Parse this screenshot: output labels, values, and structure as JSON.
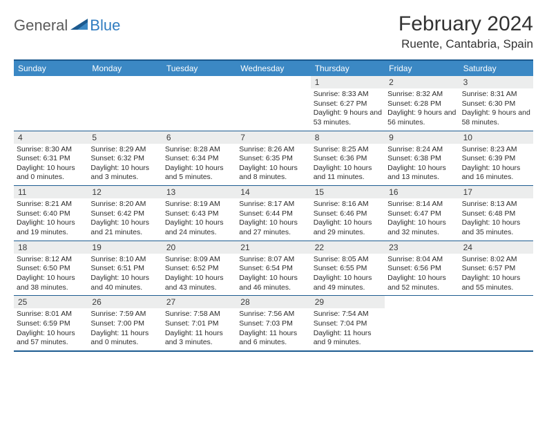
{
  "brand": {
    "general": "General",
    "blue": "Blue"
  },
  "title": "February 2024",
  "location": "Ruente, Cantabria, Spain",
  "header_bg": "#3b88c4",
  "rule_color": "#1b5a8f",
  "band_bg": "#eceded",
  "weekdays": [
    "Sunday",
    "Monday",
    "Tuesday",
    "Wednesday",
    "Thursday",
    "Friday",
    "Saturday"
  ],
  "weeks": [
    [
      {
        "n": "",
        "sunrise": "",
        "sunset": "",
        "daylight": ""
      },
      {
        "n": "",
        "sunrise": "",
        "sunset": "",
        "daylight": ""
      },
      {
        "n": "",
        "sunrise": "",
        "sunset": "",
        "daylight": ""
      },
      {
        "n": "",
        "sunrise": "",
        "sunset": "",
        "daylight": ""
      },
      {
        "n": "1",
        "sunrise": "Sunrise: 8:33 AM",
        "sunset": "Sunset: 6:27 PM",
        "daylight": "Daylight: 9 hours and 53 minutes."
      },
      {
        "n": "2",
        "sunrise": "Sunrise: 8:32 AM",
        "sunset": "Sunset: 6:28 PM",
        "daylight": "Daylight: 9 hours and 56 minutes."
      },
      {
        "n": "3",
        "sunrise": "Sunrise: 8:31 AM",
        "sunset": "Sunset: 6:30 PM",
        "daylight": "Daylight: 9 hours and 58 minutes."
      }
    ],
    [
      {
        "n": "4",
        "sunrise": "Sunrise: 8:30 AM",
        "sunset": "Sunset: 6:31 PM",
        "daylight": "Daylight: 10 hours and 0 minutes."
      },
      {
        "n": "5",
        "sunrise": "Sunrise: 8:29 AM",
        "sunset": "Sunset: 6:32 PM",
        "daylight": "Daylight: 10 hours and 3 minutes."
      },
      {
        "n": "6",
        "sunrise": "Sunrise: 8:28 AM",
        "sunset": "Sunset: 6:34 PM",
        "daylight": "Daylight: 10 hours and 5 minutes."
      },
      {
        "n": "7",
        "sunrise": "Sunrise: 8:26 AM",
        "sunset": "Sunset: 6:35 PM",
        "daylight": "Daylight: 10 hours and 8 minutes."
      },
      {
        "n": "8",
        "sunrise": "Sunrise: 8:25 AM",
        "sunset": "Sunset: 6:36 PM",
        "daylight": "Daylight: 10 hours and 11 minutes."
      },
      {
        "n": "9",
        "sunrise": "Sunrise: 8:24 AM",
        "sunset": "Sunset: 6:38 PM",
        "daylight": "Daylight: 10 hours and 13 minutes."
      },
      {
        "n": "10",
        "sunrise": "Sunrise: 8:23 AM",
        "sunset": "Sunset: 6:39 PM",
        "daylight": "Daylight: 10 hours and 16 minutes."
      }
    ],
    [
      {
        "n": "11",
        "sunrise": "Sunrise: 8:21 AM",
        "sunset": "Sunset: 6:40 PM",
        "daylight": "Daylight: 10 hours and 19 minutes."
      },
      {
        "n": "12",
        "sunrise": "Sunrise: 8:20 AM",
        "sunset": "Sunset: 6:42 PM",
        "daylight": "Daylight: 10 hours and 21 minutes."
      },
      {
        "n": "13",
        "sunrise": "Sunrise: 8:19 AM",
        "sunset": "Sunset: 6:43 PM",
        "daylight": "Daylight: 10 hours and 24 minutes."
      },
      {
        "n": "14",
        "sunrise": "Sunrise: 8:17 AM",
        "sunset": "Sunset: 6:44 PM",
        "daylight": "Daylight: 10 hours and 27 minutes."
      },
      {
        "n": "15",
        "sunrise": "Sunrise: 8:16 AM",
        "sunset": "Sunset: 6:46 PM",
        "daylight": "Daylight: 10 hours and 29 minutes."
      },
      {
        "n": "16",
        "sunrise": "Sunrise: 8:14 AM",
        "sunset": "Sunset: 6:47 PM",
        "daylight": "Daylight: 10 hours and 32 minutes."
      },
      {
        "n": "17",
        "sunrise": "Sunrise: 8:13 AM",
        "sunset": "Sunset: 6:48 PM",
        "daylight": "Daylight: 10 hours and 35 minutes."
      }
    ],
    [
      {
        "n": "18",
        "sunrise": "Sunrise: 8:12 AM",
        "sunset": "Sunset: 6:50 PM",
        "daylight": "Daylight: 10 hours and 38 minutes."
      },
      {
        "n": "19",
        "sunrise": "Sunrise: 8:10 AM",
        "sunset": "Sunset: 6:51 PM",
        "daylight": "Daylight: 10 hours and 40 minutes."
      },
      {
        "n": "20",
        "sunrise": "Sunrise: 8:09 AM",
        "sunset": "Sunset: 6:52 PM",
        "daylight": "Daylight: 10 hours and 43 minutes."
      },
      {
        "n": "21",
        "sunrise": "Sunrise: 8:07 AM",
        "sunset": "Sunset: 6:54 PM",
        "daylight": "Daylight: 10 hours and 46 minutes."
      },
      {
        "n": "22",
        "sunrise": "Sunrise: 8:05 AM",
        "sunset": "Sunset: 6:55 PM",
        "daylight": "Daylight: 10 hours and 49 minutes."
      },
      {
        "n": "23",
        "sunrise": "Sunrise: 8:04 AM",
        "sunset": "Sunset: 6:56 PM",
        "daylight": "Daylight: 10 hours and 52 minutes."
      },
      {
        "n": "24",
        "sunrise": "Sunrise: 8:02 AM",
        "sunset": "Sunset: 6:57 PM",
        "daylight": "Daylight: 10 hours and 55 minutes."
      }
    ],
    [
      {
        "n": "25",
        "sunrise": "Sunrise: 8:01 AM",
        "sunset": "Sunset: 6:59 PM",
        "daylight": "Daylight: 10 hours and 57 minutes."
      },
      {
        "n": "26",
        "sunrise": "Sunrise: 7:59 AM",
        "sunset": "Sunset: 7:00 PM",
        "daylight": "Daylight: 11 hours and 0 minutes."
      },
      {
        "n": "27",
        "sunrise": "Sunrise: 7:58 AM",
        "sunset": "Sunset: 7:01 PM",
        "daylight": "Daylight: 11 hours and 3 minutes."
      },
      {
        "n": "28",
        "sunrise": "Sunrise: 7:56 AM",
        "sunset": "Sunset: 7:03 PM",
        "daylight": "Daylight: 11 hours and 6 minutes."
      },
      {
        "n": "29",
        "sunrise": "Sunrise: 7:54 AM",
        "sunset": "Sunset: 7:04 PM",
        "daylight": "Daylight: 11 hours and 9 minutes."
      },
      {
        "n": "",
        "sunrise": "",
        "sunset": "",
        "daylight": ""
      },
      {
        "n": "",
        "sunrise": "",
        "sunset": "",
        "daylight": ""
      }
    ]
  ]
}
